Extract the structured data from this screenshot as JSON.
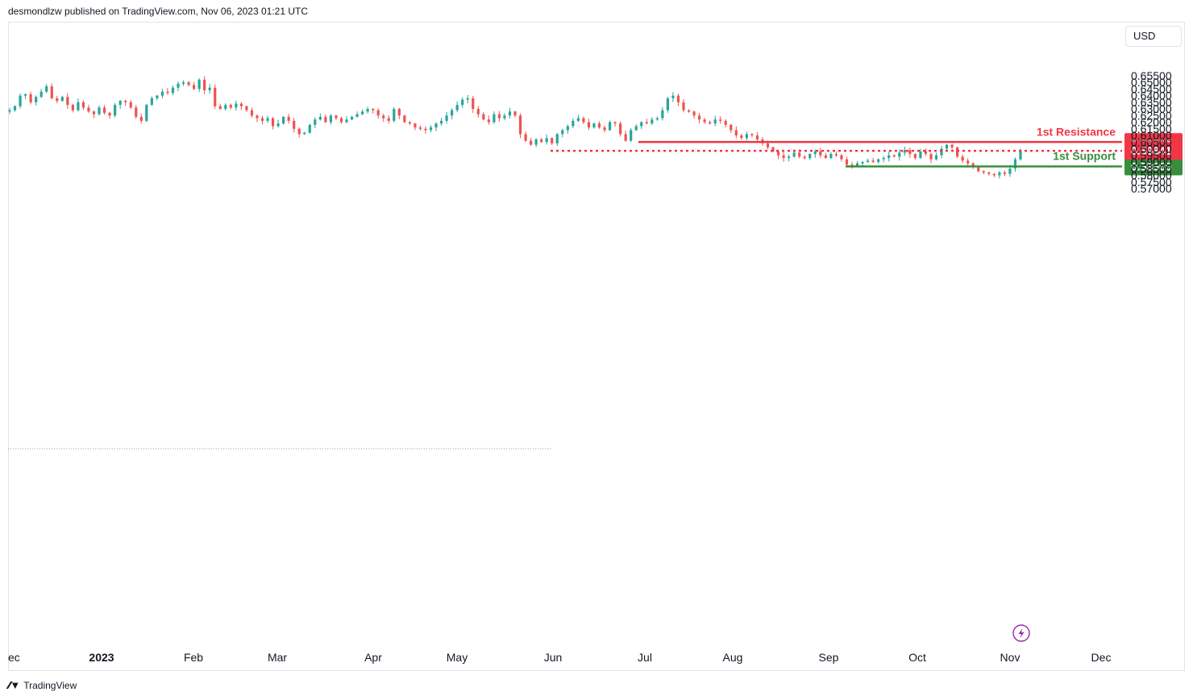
{
  "header": {
    "publisher_text": "desmondlzw published on TradingView.com, Nov 06, 2023 01:21 UTC"
  },
  "toolbar": {
    "currency_label": "USD"
  },
  "footer": {
    "brand_text": "TradingView",
    "logo_icon": "tradingview-logo-icon"
  },
  "colors": {
    "up": "#26a69a",
    "down": "#ef5350",
    "resistance": "#f23645",
    "support": "#388e3c",
    "grid": "#e0e3eb",
    "text": "#131722"
  },
  "chart_data": {
    "type": "candlestick",
    "symbol_currency": "USD",
    "ylim": [
      0.57,
      0.658
    ],
    "y_ticks": [
      "0.65500",
      "0.65000",
      "0.64500",
      "0.64000",
      "0.63500",
      "0.63000",
      "0.62500",
      "0.62000",
      "0.61500",
      "0.61000",
      "0.60500",
      "0.60000",
      "0.59500",
      "0.59000",
      "0.58500",
      "0.58000",
      "0.57500",
      "0.57000"
    ],
    "x_ticks": [
      "ec",
      "2023",
      "Feb",
      "Mar",
      "Apr",
      "May",
      "Jun",
      "Jul",
      "Aug",
      "Sep",
      "Oct",
      "Nov",
      "Dec"
    ],
    "x_ticks_bold": [
      "2023"
    ],
    "levels": [
      {
        "name": "1st Resistance",
        "value": 0.60506,
        "label": "0.60506",
        "color": "#f23645",
        "style": "solid"
      },
      {
        "name": "1st Support",
        "value": 0.58665,
        "label": "0.58665",
        "color": "#388e3c",
        "style": "solid"
      },
      {
        "name": "last-price",
        "value": 0.59841,
        "label": "0.59841",
        "color": "#f23645",
        "style": "dotted"
      }
    ],
    "level_labels": {
      "resistance": "1st Resistance",
      "support": "1st Support"
    },
    "price_path": [
      0.629,
      0.632,
      0.64,
      0.641,
      0.635,
      0.639,
      0.643,
      0.647,
      0.638,
      0.636,
      0.639,
      0.633,
      0.629,
      0.635,
      0.631,
      0.628,
      0.626,
      0.631,
      0.627,
      0.625,
      0.633,
      0.636,
      0.635,
      0.631,
      0.624,
      0.621,
      0.633,
      0.638,
      0.64,
      0.643,
      0.642,
      0.646,
      0.649,
      0.65,
      0.648,
      0.645,
      0.652,
      0.644,
      0.646,
      0.632,
      0.63,
      0.633,
      0.631,
      0.634,
      0.632,
      0.629,
      0.625,
      0.623,
      0.621,
      0.623,
      0.617,
      0.619,
      0.624,
      0.621,
      0.615,
      0.611,
      0.612,
      0.618,
      0.622,
      0.624,
      0.62,
      0.625,
      0.623,
      0.62,
      0.622,
      0.624,
      0.626,
      0.628,
      0.63,
      0.629,
      0.625,
      0.623,
      0.621,
      0.63,
      0.625,
      0.62,
      0.619,
      0.616,
      0.615,
      0.614,
      0.616,
      0.619,
      0.621,
      0.625,
      0.629,
      0.633,
      0.637,
      0.638,
      0.63,
      0.626,
      0.622,
      0.62,
      0.626,
      0.623,
      0.625,
      0.628,
      0.625,
      0.611,
      0.606,
      0.603,
      0.607,
      0.605,
      0.608,
      0.604,
      0.611,
      0.614,
      0.617,
      0.621,
      0.623,
      0.62,
      0.616,
      0.619,
      0.616,
      0.614,
      0.62,
      0.619,
      0.611,
      0.606,
      0.614,
      0.617,
      0.62,
      0.619,
      0.622,
      0.623,
      0.629,
      0.638,
      0.64,
      0.635,
      0.629,
      0.628,
      0.625,
      0.622,
      0.62,
      0.619,
      0.622,
      0.621,
      0.618,
      0.614,
      0.61,
      0.608,
      0.611,
      0.61,
      0.607,
      0.604,
      0.601,
      0.598,
      0.595,
      0.593,
      0.594,
      0.597,
      0.594,
      0.593,
      0.596,
      0.598,
      0.595,
      0.593,
      0.596,
      0.595,
      0.592,
      0.588,
      0.587,
      0.589,
      0.59,
      0.591,
      0.59,
      0.592,
      0.593,
      0.595,
      0.594,
      0.597,
      0.599,
      0.596,
      0.593,
      0.598,
      0.596,
      0.592,
      0.595,
      0.6,
      0.603,
      0.601,
      0.594,
      0.591,
      0.589,
      0.586,
      0.583,
      0.582,
      0.581,
      0.58,
      0.582,
      0.581,
      0.585,
      0.592,
      0.5984
    ]
  }
}
